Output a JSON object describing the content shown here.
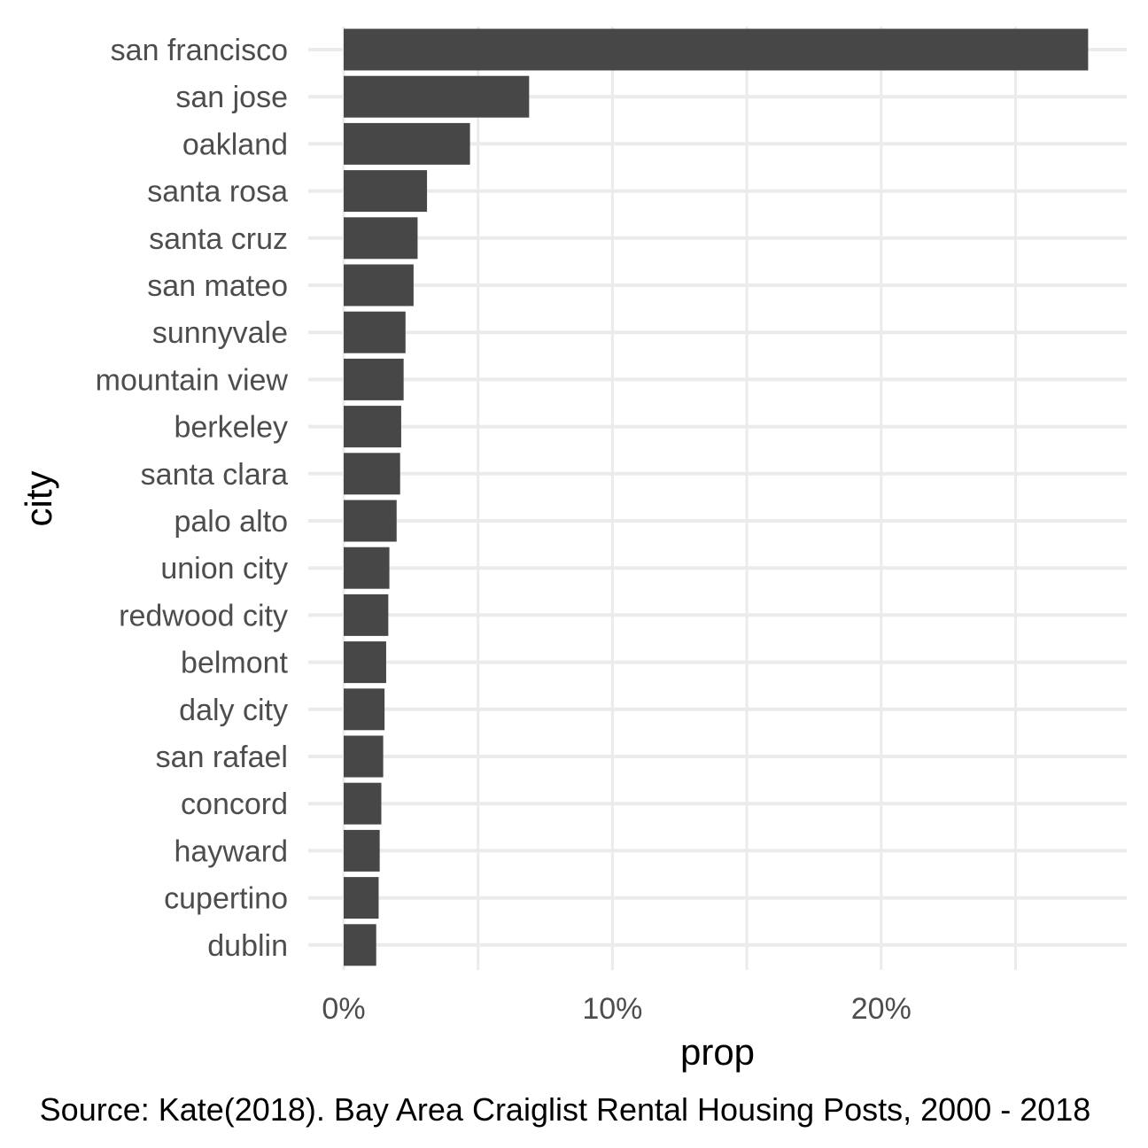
{
  "chart_data": {
    "type": "bar",
    "orientation": "horizontal",
    "categories": [
      "san francisco",
      "san jose",
      "oakland",
      "santa rosa",
      "santa cruz",
      "san mateo",
      "sunnyvale",
      "mountain view",
      "berkeley",
      "santa clara",
      "palo alto",
      "union city",
      "redwood city",
      "belmont",
      "daly city",
      "san rafael",
      "concord",
      "hayward",
      "cupertino",
      "dublin"
    ],
    "values": [
      0.277,
      0.069,
      0.047,
      0.031,
      0.0275,
      0.026,
      0.023,
      0.0223,
      0.0214,
      0.021,
      0.0197,
      0.017,
      0.0166,
      0.0158,
      0.0152,
      0.0147,
      0.014,
      0.0134,
      0.013,
      0.0121
    ],
    "xlabel": "prop",
    "ylabel": "city",
    "xlim": [
      0,
      0.29
    ],
    "x_ticks": [
      0,
      0.1,
      0.2
    ],
    "x_tick_labels": [
      "0%",
      "10%",
      "20%"
    ],
    "x_minor_ticks": [
      0.05,
      0.15,
      0.25
    ],
    "grid": true,
    "bar_color": "#474747",
    "grid_color": "#ebebeb",
    "caption": "Source: Kate(2018). Bay Area Craiglist Rental Housing Posts, 2000 - 2018"
  }
}
